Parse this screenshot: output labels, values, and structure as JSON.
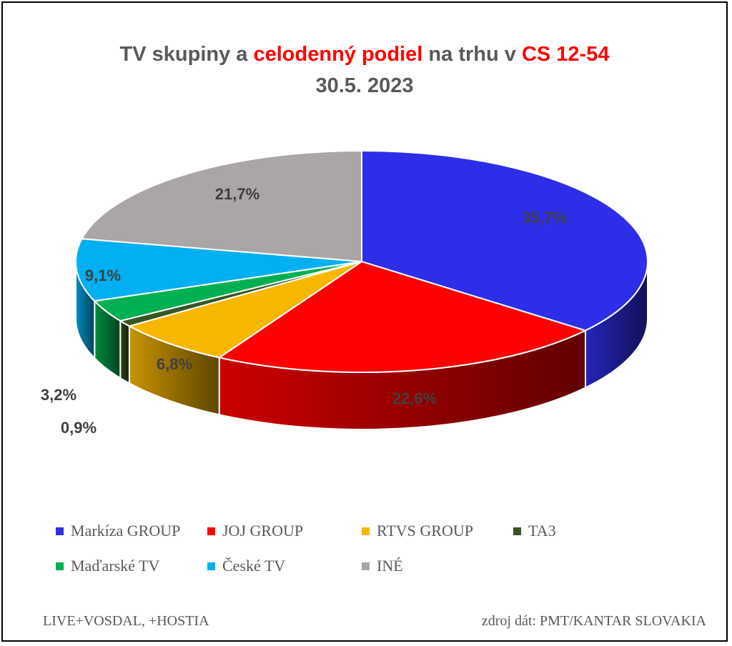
{
  "title": {
    "part1": "TV skupiny a ",
    "highlight1": "celodenný podiel",
    "part2": " na trhu v ",
    "highlight2": "CS 12-54",
    "line2": "30.5. 2023"
  },
  "chart_data": {
    "type": "pie",
    "style": "3d",
    "categories": [
      "Markíza GROUP",
      "JOJ GROUP",
      "RTVS GROUP",
      "TA3",
      "Maďarské  TV",
      "České  TV",
      "INÉ"
    ],
    "values": [
      35.7,
      22.6,
      6.8,
      0.9,
      3.2,
      9.1,
      21.7
    ],
    "labels": [
      "35,7%",
      "22,6%",
      "6,8%",
      "0,9%",
      "3,2%",
      "9,1%",
      "21,7%"
    ],
    "colors": [
      "#2e2ee8",
      "#ff0000",
      "#f9b800",
      "#375623",
      "#00b050",
      "#00b0f0",
      "#aaa6a6"
    ],
    "legend_position": "bottom"
  },
  "footer": {
    "left": "LIVE+VOSDAL,  +HOSTIA",
    "right": "zdroj dát: PMT/KANTAR SLOVAKIA"
  }
}
